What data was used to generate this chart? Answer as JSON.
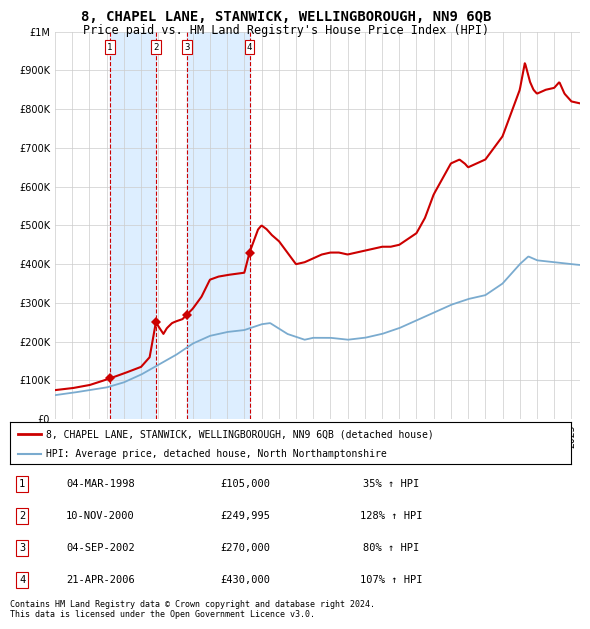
{
  "title1": "8, CHAPEL LANE, STANWICK, WELLINGBOROUGH, NN9 6QB",
  "title2": "Price paid vs. HM Land Registry's House Price Index (HPI)",
  "footer": "Contains HM Land Registry data © Crown copyright and database right 2024.\nThis data is licensed under the Open Government Licence v3.0.",
  "legend_red": "8, CHAPEL LANE, STANWICK, WELLINGBOROUGH, NN9 6QB (detached house)",
  "legend_blue": "HPI: Average price, detached house, North Northamptonshire",
  "transactions": [
    {
      "num": 1,
      "date": "04-MAR-1998",
      "price": 105000,
      "pct": "35%",
      "year": 1998.17
    },
    {
      "num": 2,
      "date": "10-NOV-2000",
      "price": 249995,
      "pct": "128%",
      "year": 2000.86
    },
    {
      "num": 3,
      "date": "04-SEP-2002",
      "price": 270000,
      "pct": "80%",
      "year": 2002.67
    },
    {
      "num": 4,
      "date": "21-APR-2006",
      "price": 430000,
      "pct": "107%",
      "year": 2006.3
    }
  ],
  "red_color": "#cc0000",
  "blue_color": "#7aabcf",
  "bg_color": "#ffffff",
  "grid_color": "#cccccc",
  "shade_color": "#ddeeff",
  "title_fontsize": 10,
  "subtitle_fontsize": 8.5,
  "axis_fontsize": 7,
  "ylim": [
    0,
    1000000
  ],
  "yticks": [
    0,
    100000,
    200000,
    300000,
    400000,
    500000,
    600000,
    700000,
    800000,
    900000,
    1000000
  ],
  "xlim_start": 1995,
  "xlim_end": 2025.5
}
